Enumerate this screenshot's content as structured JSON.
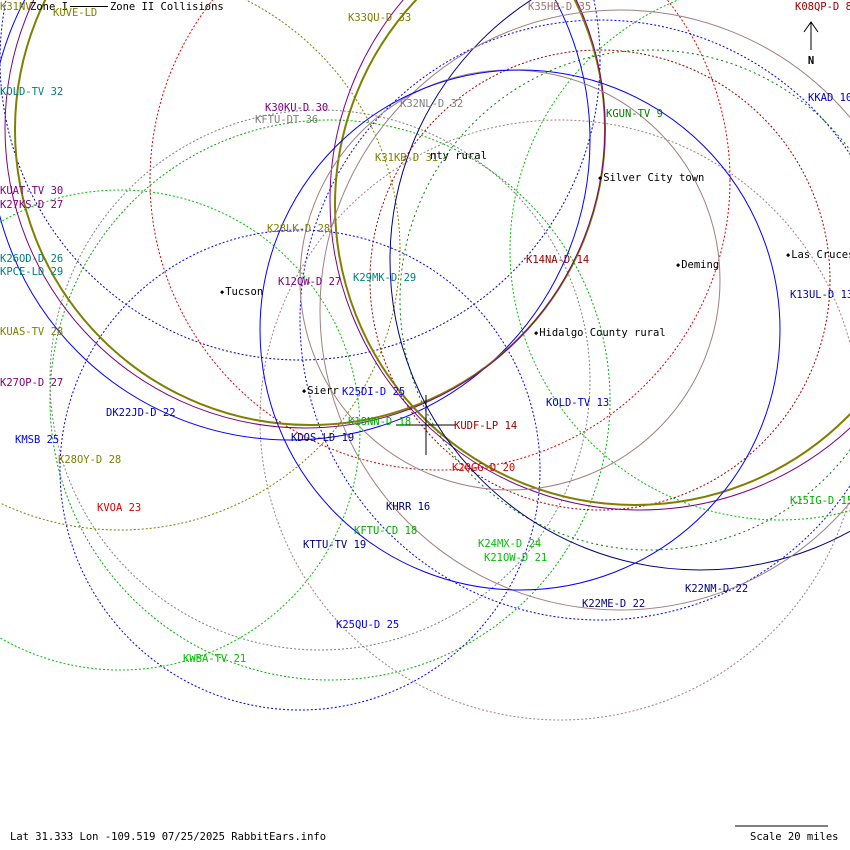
{
  "legend": {
    "zone1": "Zone I",
    "zone2": "Zone II",
    "collisions": "Collisions"
  },
  "north_label": "N",
  "footer": {
    "location": "Lat 31.333 Lon -109.519 07/25/2025 RabbitEars.info",
    "scale": "Scale 20 miles"
  },
  "stations": [
    {
      "label": "K31NV",
      "color": "#808000"
    },
    {
      "label": "KUVE-LD",
      "color": "#808000"
    },
    {
      "label": "K33QU-D 33",
      "color": "#808000"
    },
    {
      "label": "K35HB-D 35",
      "color": "#a07070"
    },
    {
      "label": "K08QP-D 8",
      "color": "#a00000"
    },
    {
      "label": "KOLD-TV 32",
      "color": "#008080"
    },
    {
      "label": "KKAD 10",
      "color": "#0000c0"
    },
    {
      "label": "K30KU-D 30",
      "color": "#800080"
    },
    {
      "label": "KFTU-DT 36",
      "color": "#808080"
    },
    {
      "label": "K32NL-D 32",
      "color": "#808080"
    },
    {
      "label": "KGUN-TV 9",
      "color": "#008000"
    },
    {
      "label": "K31KB-D 31",
      "color": "#808000"
    },
    {
      "label": "KUAT-TV 30",
      "color": "#800080"
    },
    {
      "label": "K27KS-D 27",
      "color": "#800080"
    },
    {
      "label": "K28LK-D 28",
      "color": "#808000"
    },
    {
      "label": "K26OD-D 26",
      "color": "#008080"
    },
    {
      "label": "KPCE-LD 29",
      "color": "#008080"
    },
    {
      "label": "K14NA-D 14",
      "color": "#a00000"
    },
    {
      "label": "K29MK-D 29",
      "color": "#008080"
    },
    {
      "label": "K12QW-D 27",
      "color": "#800080"
    },
    {
      "label": "K13UL-D 13",
      "color": "#0000c0"
    },
    {
      "label": "KUAS-TV 28",
      "color": "#808000"
    },
    {
      "label": "K27OP-D 27",
      "color": "#800080"
    },
    {
      "label": "K25DI-D 25",
      "color": "#0000ff"
    },
    {
      "label": "KOLD-TV 13",
      "color": "#0000c0"
    },
    {
      "label": "DK22JD-D 22",
      "color": "#0000c0"
    },
    {
      "label": "K18NN-D 18",
      "color": "#00b000"
    },
    {
      "label": "KUDF-LP 14",
      "color": "#a00000"
    },
    {
      "label": "KMSB 25",
      "color": "#0000ff"
    },
    {
      "label": "KDOS-LD 19",
      "color": "#000080"
    },
    {
      "label": "K28OY-D 28",
      "color": "#808000"
    },
    {
      "label": "K20GG-D 20",
      "color": "#e00000"
    },
    {
      "label": "KVOA 23",
      "color": "#e00000"
    },
    {
      "label": "KHRR 16",
      "color": "#000080"
    },
    {
      "label": "K15IG-D 15",
      "color": "#00b000"
    },
    {
      "label": "KFTU-CD 18",
      "color": "#00b000"
    },
    {
      "label": "KTTU-TV 19",
      "color": "#000080"
    },
    {
      "label": "K24MX-D 24",
      "color": "#00c000"
    },
    {
      "label": "K21OW-D 21",
      "color": "#00c000"
    },
    {
      "label": "K22NM-D 22",
      "color": "#000080"
    },
    {
      "label": "K22ME-D 22",
      "color": "#000080"
    },
    {
      "label": "K25QU-D 25",
      "color": "#0000ff"
    },
    {
      "label": "KWBA-TV 21",
      "color": "#00c000"
    }
  ],
  "cities": [
    "nty rural",
    "Silver City town",
    "Deming",
    "Las Cruces",
    "Tucson",
    "Hidalgo County rural",
    "Sierr"
  ]
}
